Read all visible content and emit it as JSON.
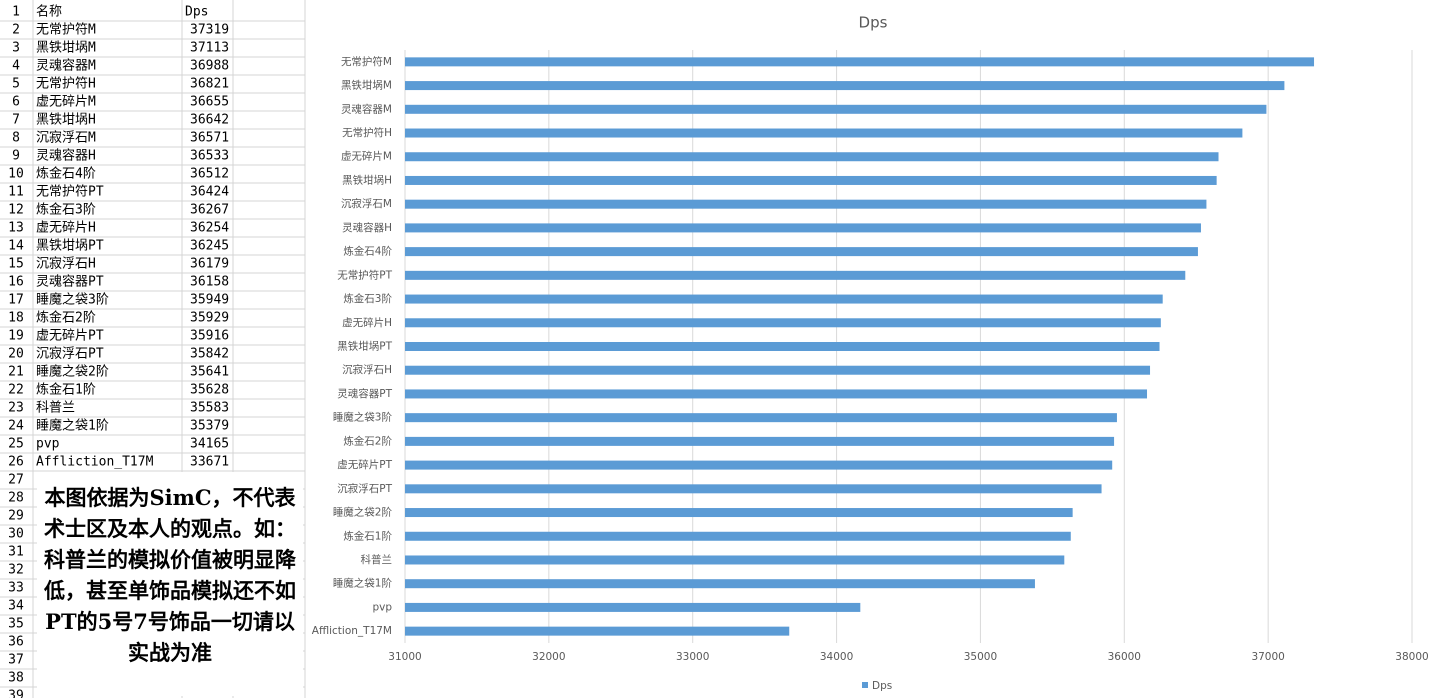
{
  "sheet": {
    "row_numbers": [
      1,
      2,
      3,
      4,
      5,
      6,
      7,
      8,
      9,
      10,
      11,
      12,
      13,
      14,
      15,
      16,
      17,
      18,
      19,
      20,
      21,
      22,
      23,
      24,
      25,
      26,
      27,
      28,
      29,
      30,
      31,
      32,
      33,
      34,
      35,
      36,
      37,
      38,
      39
    ],
    "header": [
      "名称",
      "Dps"
    ],
    "rows": [
      [
        "无常护符M",
        37319
      ],
      [
        "黑铁坩埚M",
        37113
      ],
      [
        "灵魂容器M",
        36988
      ],
      [
        "无常护符H",
        36821
      ],
      [
        "虚无碎片M",
        36655
      ],
      [
        "黑铁坩埚H",
        36642
      ],
      [
        "沉寂浮石M",
        36571
      ],
      [
        "灵魂容器H",
        36533
      ],
      [
        "炼金石4阶",
        36512
      ],
      [
        "无常护符PT",
        36424
      ],
      [
        "炼金石3阶",
        36267
      ],
      [
        "虚无碎片H",
        36254
      ],
      [
        "黑铁坩埚PT",
        36245
      ],
      [
        "沉寂浮石H",
        36179
      ],
      [
        "灵魂容器PT",
        36158
      ],
      [
        "睡魔之袋3阶",
        35949
      ],
      [
        "炼金石2阶",
        35929
      ],
      [
        "虚无碎片PT",
        35916
      ],
      [
        "沉寂浮石PT",
        35842
      ],
      [
        "睡魔之袋2阶",
        35641
      ],
      [
        "炼金石1阶",
        35628
      ],
      [
        "科普兰",
        35583
      ],
      [
        "睡魔之袋1阶",
        35379
      ],
      [
        "pvp",
        34165
      ],
      [
        "Affliction_T17M",
        33671
      ]
    ]
  },
  "note": "本图依据为SimC，不代表术士区及本人的观点。如：科普兰的模拟价值被明显降低，甚至单饰品模拟还不如PT的5号7号饰品一切请以实战为准",
  "chart_data": {
    "type": "bar",
    "orientation": "horizontal",
    "title": "Dps",
    "categories": [
      "无常护符M",
      "黑铁坩埚M",
      "灵魂容器M",
      "无常护符H",
      "虚无碎片M",
      "黑铁坩埚H",
      "沉寂浮石M",
      "灵魂容器H",
      "炼金石4阶",
      "无常护符PT",
      "炼金石3阶",
      "虚无碎片H",
      "黑铁坩埚PT",
      "沉寂浮石H",
      "灵魂容器PT",
      "睡魔之袋3阶",
      "炼金石2阶",
      "虚无碎片PT",
      "沉寂浮石PT",
      "睡魔之袋2阶",
      "炼金石1阶",
      "科普兰",
      "睡魔之袋1阶",
      "pvp",
      "Affliction_T17M"
    ],
    "series": [
      {
        "name": "Dps",
        "color": "#5b9bd5",
        "values": [
          37319,
          37113,
          36988,
          36821,
          36655,
          36642,
          36571,
          36533,
          36512,
          36424,
          36267,
          36254,
          36245,
          36179,
          36158,
          35949,
          35929,
          35916,
          35842,
          35641,
          35628,
          35583,
          35379,
          34165,
          33671
        ]
      }
    ],
    "xlim": [
      31000,
      38000
    ],
    "xticks": [
      31000,
      32000,
      33000,
      34000,
      35000,
      36000,
      37000,
      38000
    ],
    "grid": true,
    "legend": "bottom"
  }
}
